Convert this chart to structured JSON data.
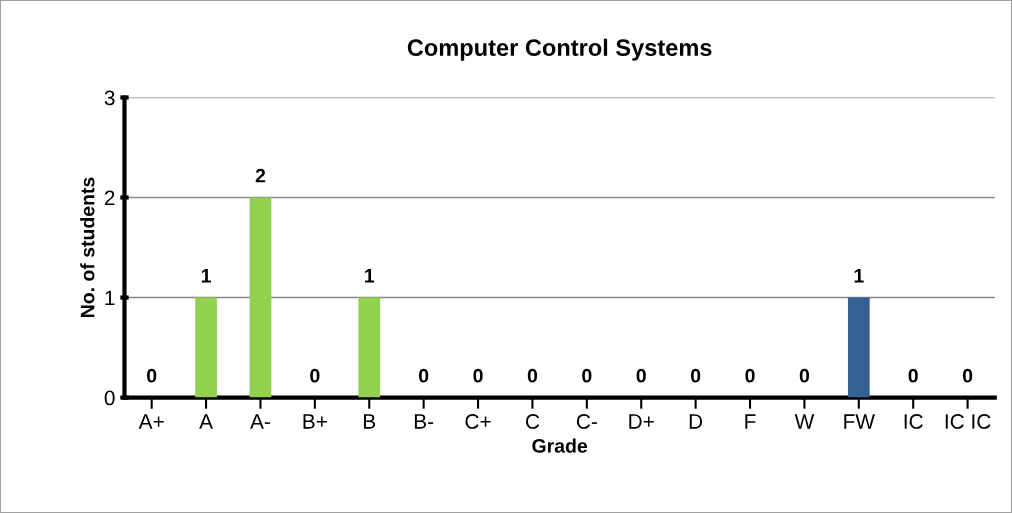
{
  "chart_data": {
    "type": "bar",
    "title": "Computer Control Systems",
    "xlabel": "Grade",
    "ylabel": "No. of students",
    "categories": [
      "A+",
      "A",
      "A-",
      "B+",
      "B",
      "B-",
      "C+",
      "C",
      "C-",
      "D+",
      "D",
      "F",
      "W",
      "FW",
      "IC",
      "IC IC"
    ],
    "values": [
      0,
      1,
      2,
      0,
      1,
      0,
      0,
      0,
      0,
      0,
      0,
      0,
      0,
      1,
      0,
      0
    ],
    "colors": [
      "#92d050",
      "#92d050",
      "#92d050",
      "#92d050",
      "#92d050",
      "#92d050",
      "#92d050",
      "#92d050",
      "#92d050",
      "#92d050",
      "#92d050",
      "#92d050",
      "#92d050",
      "#376092",
      "#92d050",
      "#92d050"
    ],
    "ylim": [
      0,
      3
    ],
    "yticks": [
      0,
      1,
      2,
      3
    ],
    "grid": "y",
    "data_labels": true
  }
}
